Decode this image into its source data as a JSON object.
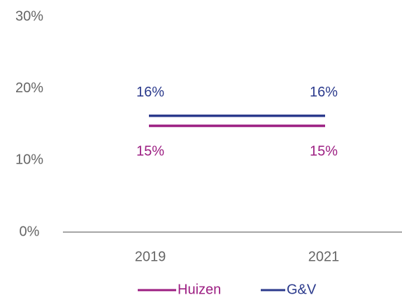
{
  "chart_data": {
    "type": "line",
    "categories": [
      "2019",
      "2021"
    ],
    "series": [
      {
        "name": "Huizen",
        "color": "#9c1e82",
        "values": [
          14.8,
          14.8
        ],
        "value_labels": [
          "15%",
          "15%"
        ]
      },
      {
        "name": "G&V",
        "color": "#2b3a8c",
        "values": [
          16.2,
          16.2
        ],
        "value_labels": [
          "16%",
          "16%"
        ]
      }
    ],
    "ylim": [
      0,
      30
    ],
    "yticks": [
      {
        "value": 0,
        "label": "0%"
      },
      {
        "value": 10,
        "label": "10%"
      },
      {
        "value": 20,
        "label": "20%"
      },
      {
        "value": 30,
        "label": "30%"
      }
    ],
    "grid": false
  }
}
